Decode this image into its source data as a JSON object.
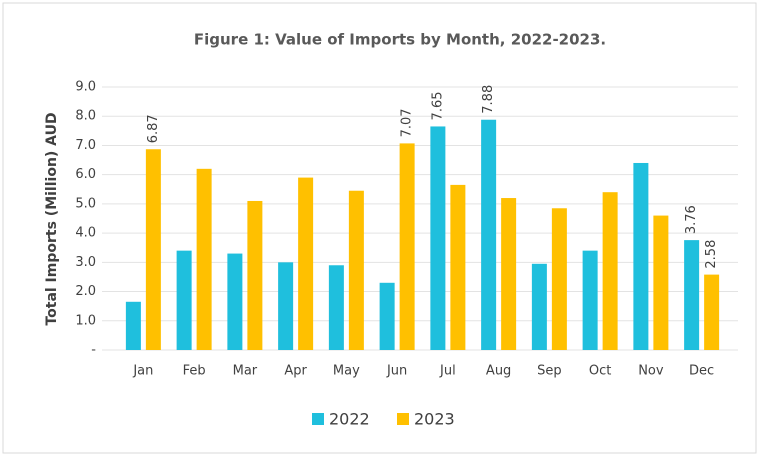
{
  "chart_data": {
    "type": "bar",
    "title": "Figure 1: Value of Imports by Month, 2022-2023.",
    "y_label": "Total Imports (Million) AUD",
    "categories": [
      "Jan",
      "Feb",
      "Mar",
      "Apr",
      "May",
      "Jun",
      "Jul",
      "Aug",
      "Sep",
      "Oct",
      "Nov",
      "Dec"
    ],
    "series": [
      {
        "name": "2022",
        "color": "#1fbfdd",
        "values": [
          1.65,
          3.4,
          3.3,
          3.0,
          2.9,
          2.3,
          7.65,
          7.88,
          2.95,
          3.4,
          6.4,
          3.76
        ],
        "value_labels": [
          null,
          null,
          null,
          null,
          null,
          null,
          "7.65",
          "7.88",
          null,
          null,
          null,
          "3.76"
        ]
      },
      {
        "name": "2023",
        "color": "#ffc000",
        "values": [
          6.87,
          6.2,
          5.1,
          5.9,
          5.45,
          7.07,
          5.65,
          5.2,
          4.85,
          5.4,
          4.6,
          2.58
        ],
        "value_labels": [
          "6.87",
          null,
          null,
          null,
          null,
          "7.07",
          null,
          null,
          null,
          null,
          null,
          "2.58"
        ]
      }
    ],
    "ylim": [
      0,
      9
    ],
    "yticks": [
      {
        "value": 0,
        "label": "-"
      },
      {
        "value": 1,
        "label": "1.0"
      },
      {
        "value": 2,
        "label": "2.0"
      },
      {
        "value": 3,
        "label": "3.0"
      },
      {
        "value": 4,
        "label": "4.0"
      },
      {
        "value": 5,
        "label": "5.0"
      },
      {
        "value": 6,
        "label": "6.0"
      },
      {
        "value": 7,
        "label": "7.0"
      },
      {
        "value": 8,
        "label": "8.0"
      },
      {
        "value": 9,
        "label": "9.0"
      }
    ],
    "grid": true,
    "legend": "bottom"
  }
}
